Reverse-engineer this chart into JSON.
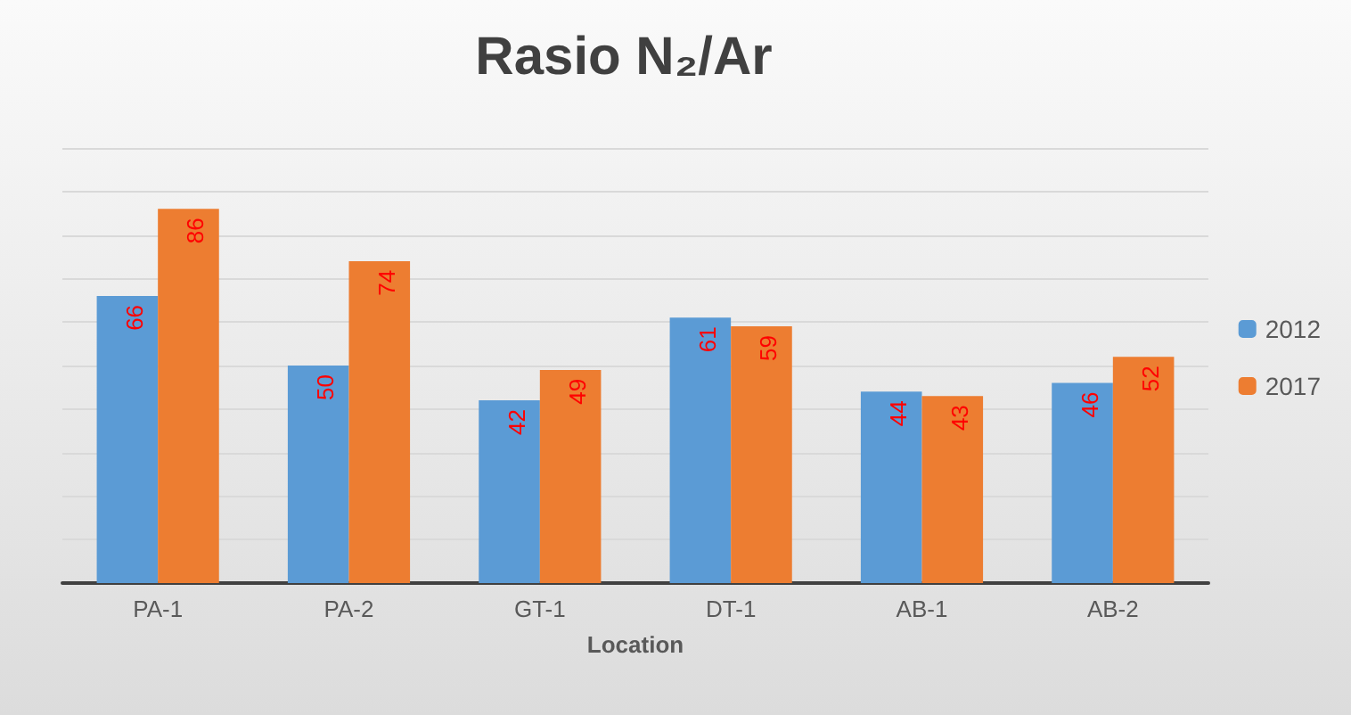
{
  "chart_data": {
    "type": "bar",
    "title": "Rasio N₂/Ar",
    "xlabel": "Location",
    "categories": [
      "PA-1",
      "PA-2",
      "GT-1",
      "DT-1",
      "AB-1",
      "AB-2"
    ],
    "series": [
      {
        "name": "2012",
        "color": "#5b9bd5",
        "values": [
          66,
          50,
          42,
          61,
          44,
          46
        ]
      },
      {
        "name": "2017",
        "color": "#ed7d31",
        "values": [
          86,
          74,
          49,
          59,
          43,
          52
        ]
      }
    ],
    "ylim": [
      0,
      100
    ],
    "yticks": [
      {
        "value": 0,
        "label": null
      },
      {
        "value": 10,
        "label": null
      },
      {
        "value": 20,
        "label": null
      },
      {
        "value": 30,
        "label": null
      },
      {
        "value": 40,
        "label": null
      },
      {
        "value": 50,
        "label": null
      },
      {
        "value": 60,
        "label": null
      },
      {
        "value": 70,
        "label": null
      },
      {
        "value": 80,
        "label": null
      },
      {
        "value": 90,
        "label": null
      },
      {
        "value": 100,
        "label": null
      }
    ],
    "tick_labels": "x",
    "grid": "y",
    "legend": "right",
    "data_labels": true
  }
}
